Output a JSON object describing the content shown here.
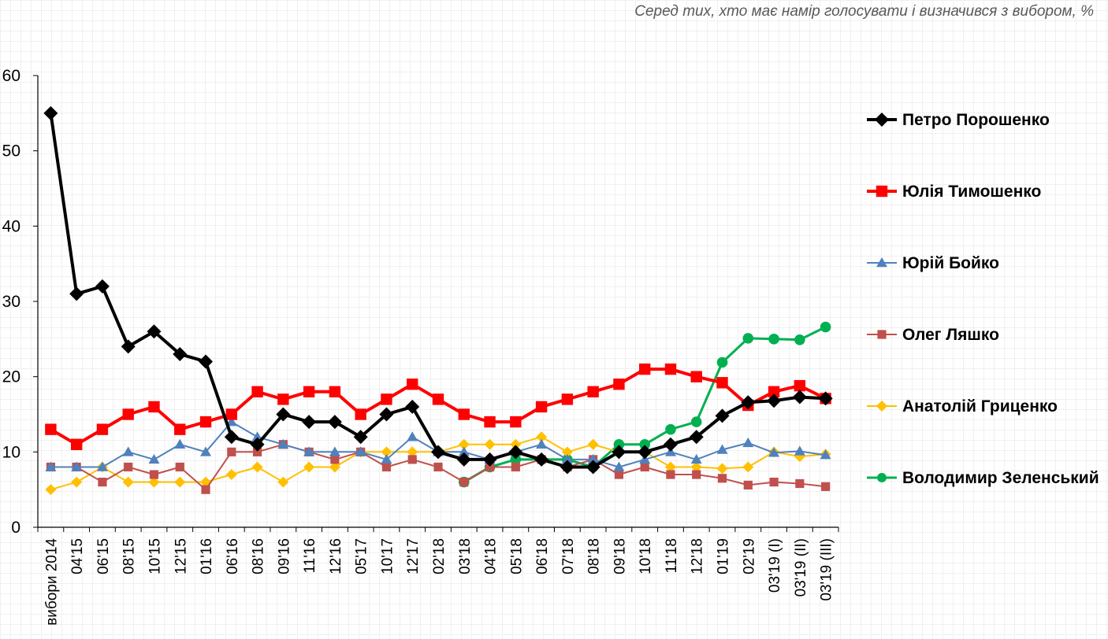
{
  "subtitle": "Серед тих, хто має намір голосувати і визначився з вибором, %",
  "chart_data": {
    "type": "line",
    "title": "",
    "xlabel": "",
    "ylabel": "",
    "ylim": [
      0,
      60
    ],
    "yticks": [
      0,
      10,
      20,
      30,
      40,
      50,
      60
    ],
    "grid": false,
    "legend_position": "right",
    "categories": [
      "вибори 2014",
      "04'15",
      "06'15",
      "08'15",
      "10'15",
      "12'15",
      "01'16",
      "06'16",
      "08'16",
      "09'16",
      "11'16",
      "12'16",
      "05'17",
      "10'17",
      "12'17",
      "02'18",
      "03'18",
      "04'18",
      "05'18",
      "06'18",
      "07'18",
      "08'18",
      "09'18",
      "10'18",
      "11'18",
      "12'18",
      "01'19",
      "02'19",
      "03'19 (I)",
      "03'19 (II)",
      "03'19 (III)"
    ],
    "series": [
      {
        "name": "Петро Порошенко",
        "color": "#000000",
        "marker": "diamond",
        "line_width": 4,
        "values": [
          55,
          31,
          32,
          24,
          26,
          23,
          22,
          12,
          11,
          15,
          14,
          14,
          12,
          15,
          16,
          10,
          9,
          9,
          10,
          9,
          8,
          8,
          10,
          10,
          11,
          12,
          14.8,
          16.6,
          16.8,
          17.3,
          17.1
        ]
      },
      {
        "name": "Юлія Тимошенко",
        "color": "#ff0000",
        "marker": "square",
        "line_width": 4,
        "values": [
          13,
          11,
          13,
          15,
          16,
          13,
          14,
          15,
          18,
          17,
          18,
          18,
          15,
          17,
          19,
          17,
          15,
          14,
          14,
          16,
          17,
          18,
          19,
          21,
          21,
          20,
          19.2,
          16.2,
          18.0,
          18.8,
          17.1
        ]
      },
      {
        "name": "Юрій Бойко",
        "color": "#4f81bd",
        "marker": "triangle",
        "line_width": 2,
        "values": [
          8,
          8,
          8,
          10,
          9,
          11,
          10,
          14,
          12,
          11,
          10,
          10,
          10,
          9,
          12,
          10,
          10,
          9,
          10,
          11,
          9,
          9,
          8,
          9,
          10,
          9,
          10.3,
          11.2,
          9.9,
          10.1,
          9.6
        ]
      },
      {
        "name": "Олег Ляшко",
        "color": "#c0504d",
        "marker": "square",
        "line_width": 2,
        "values": [
          8,
          8,
          6,
          8,
          7,
          8,
          5,
          10,
          10,
          11,
          10,
          9,
          10,
          8,
          9,
          8,
          6,
          8,
          8,
          9,
          8,
          9,
          7,
          8,
          7,
          7,
          6.5,
          5.6,
          6.0,
          5.8,
          5.4
        ]
      },
      {
        "name": "Анатолій Гриценко",
        "color": "#ffc000",
        "marker": "diamond",
        "line_width": 2,
        "values": [
          5,
          6,
          8,
          6,
          6,
          6,
          6,
          7,
          8,
          6,
          8,
          8,
          10,
          10,
          10,
          10,
          11,
          11,
          11,
          12,
          10,
          11,
          10,
          10,
          8,
          8,
          7.8,
          8.0,
          10.0,
          9.4,
          9.7
        ]
      },
      {
        "name": "Володимир Зеленський",
        "color": "#00b050",
        "marker": "circle",
        "line_width": 3,
        "values": [
          null,
          null,
          null,
          null,
          null,
          null,
          null,
          null,
          null,
          null,
          null,
          null,
          null,
          null,
          null,
          null,
          6,
          8,
          9,
          9,
          9,
          8,
          11,
          11,
          13,
          14,
          21.9,
          25.1,
          25.0,
          24.9,
          26.6
        ]
      }
    ]
  }
}
